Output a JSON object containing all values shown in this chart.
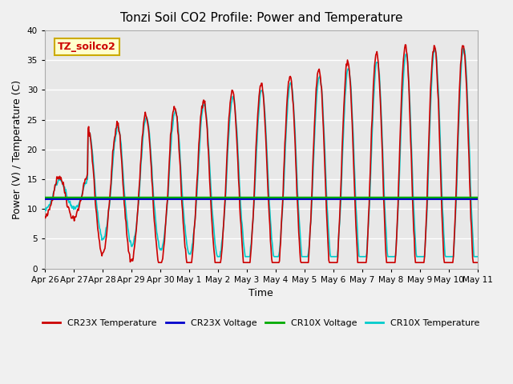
{
  "title": "Tonzi Soil CO2 Profile: Power and Temperature",
  "xlabel": "Time",
  "ylabel": "Power (V) / Temperature (C)",
  "ylim": [
    0,
    40
  ],
  "yticks": [
    0,
    5,
    10,
    15,
    20,
    25,
    30,
    35,
    40
  ],
  "annotation": "TZ_soilco2",
  "bg_color": "#e8e8e8",
  "fig_bg_color": "#f0f0f0",
  "cr23x_temp_color": "#cc0000",
  "cr23x_volt_color": "#0000cc",
  "cr10x_volt_color": "#00aa00",
  "cr10x_temp_color": "#00cccc",
  "legend_entries": [
    "CR23X Temperature",
    "CR23X Voltage",
    "CR10X Voltage",
    "CR10X Temperature"
  ],
  "cr23x_volt_value": 11.7,
  "cr10x_volt_value": 11.85,
  "x_tick_labels": [
    "Apr 26",
    "Apr 27",
    "Apr 28",
    "Apr 29",
    "Apr 30",
    "May 1",
    "May 2",
    "May 3",
    "May 4",
    "May 5",
    "May 6",
    "May 7",
    "May 8",
    "May 9",
    "May 10",
    "May 11"
  ]
}
